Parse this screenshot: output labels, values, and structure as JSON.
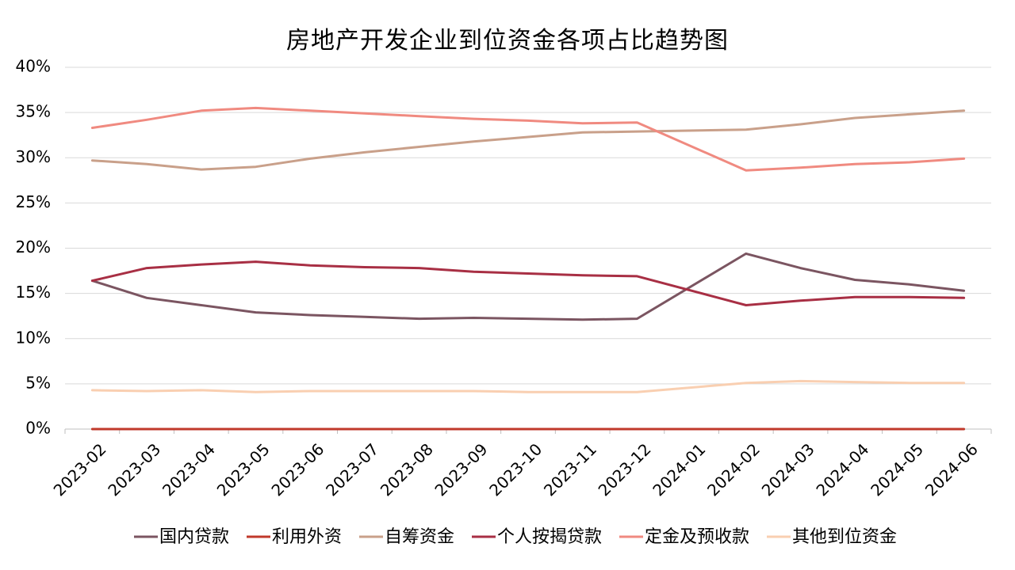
{
  "chart_data": {
    "type": "line",
    "title": "房地产开发企业到位资金各项占比趋势图",
    "xlabel": "",
    "ylabel": "",
    "ylim": [
      0,
      40
    ],
    "yticks": [
      "0%",
      "5%",
      "10%",
      "15%",
      "20%",
      "25%",
      "30%",
      "35%",
      "40%"
    ],
    "grid": "horizontal",
    "legend_position": "bottom",
    "categories": [
      "2023-02",
      "2023-03",
      "2023-04",
      "2023-05",
      "2023-06",
      "2023-07",
      "2023-08",
      "2023-09",
      "2023-10",
      "2023-11",
      "2023-12",
      "2024-01",
      "2024-02",
      "2024-03",
      "2024-04",
      "2024-05",
      "2024-06"
    ],
    "series": [
      {
        "name": "国内贷款",
        "color": "#7b5561",
        "values": [
          16.4,
          14.5,
          13.7,
          12.9,
          12.6,
          12.4,
          12.2,
          12.3,
          12.2,
          12.1,
          12.2,
          null,
          19.4,
          17.8,
          16.5,
          16.0,
          15.3
        ]
      },
      {
        "name": "利用外资",
        "color": "#c0392b",
        "values": [
          0,
          0,
          0,
          0,
          0,
          0,
          0,
          0,
          0,
          0,
          0,
          null,
          0,
          0,
          0,
          0,
          0
        ]
      },
      {
        "name": "自筹资金",
        "color": "#c9a08a",
        "values": [
          29.7,
          29.3,
          28.7,
          29.0,
          29.9,
          30.6,
          31.2,
          31.8,
          32.3,
          32.8,
          32.9,
          null,
          33.1,
          33.7,
          34.4,
          34.8,
          35.2
        ]
      },
      {
        "name": "个人按揭贷款",
        "color": "#a82f44",
        "values": [
          16.4,
          17.8,
          18.2,
          18.5,
          18.1,
          17.9,
          17.8,
          17.4,
          17.2,
          17.0,
          16.9,
          null,
          13.7,
          14.2,
          14.6,
          14.6,
          14.5
        ]
      },
      {
        "name": "定金及预收款",
        "color": "#f08a80",
        "values": [
          33.3,
          34.2,
          35.2,
          35.5,
          35.2,
          34.9,
          34.6,
          34.3,
          34.1,
          33.8,
          33.9,
          null,
          28.6,
          28.9,
          29.3,
          29.5,
          29.9
        ]
      },
      {
        "name": "其他到位资金",
        "color": "#f9cfb1",
        "values": [
          4.3,
          4.2,
          4.3,
          4.1,
          4.2,
          4.2,
          4.2,
          4.2,
          4.1,
          4.1,
          4.1,
          null,
          5.1,
          5.3,
          5.2,
          5.1,
          5.1
        ]
      }
    ]
  }
}
